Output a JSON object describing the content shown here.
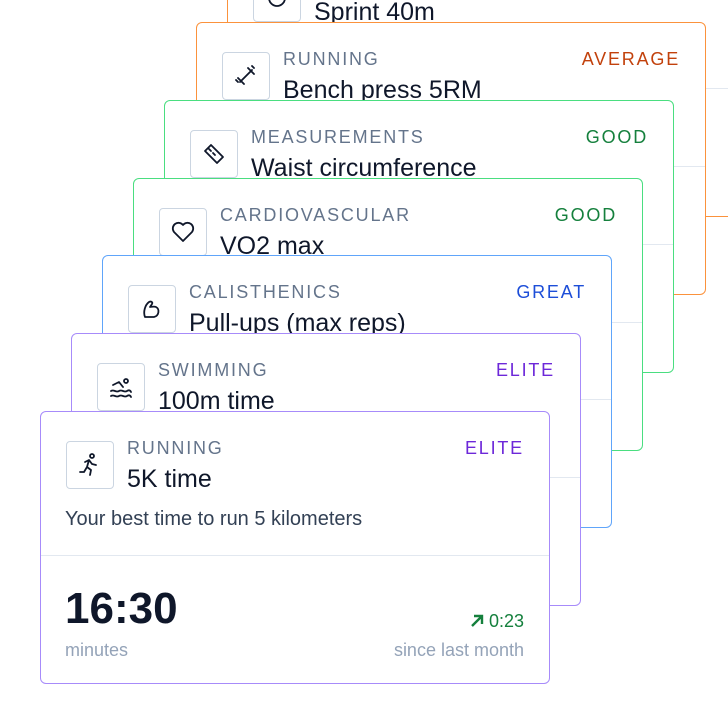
{
  "cards": [
    {
      "category": "RUNNING",
      "title": "5K time",
      "rating": "ELITE",
      "description": "Your best time to run 5 kilometers",
      "value": "16:30",
      "unit": "minutes",
      "change": "0:23",
      "change_label": "since last month"
    },
    {
      "category": "SWIMMING",
      "title": "100m time",
      "rating": "ELITE"
    },
    {
      "category": "CALISTHENICS",
      "title": "Pull-ups (max reps)",
      "rating": "GREAT"
    },
    {
      "category": "CARDIOVASCULAR",
      "title": "VO2 max",
      "rating": "GOOD"
    },
    {
      "category": "MEASUREMENTS",
      "title": "Waist circumference",
      "rating": "GOOD"
    },
    {
      "category": "RUNNING",
      "title": "Bench press 5RM",
      "rating": "AVERAGE"
    },
    {
      "title": "Sprint 40m"
    }
  ]
}
